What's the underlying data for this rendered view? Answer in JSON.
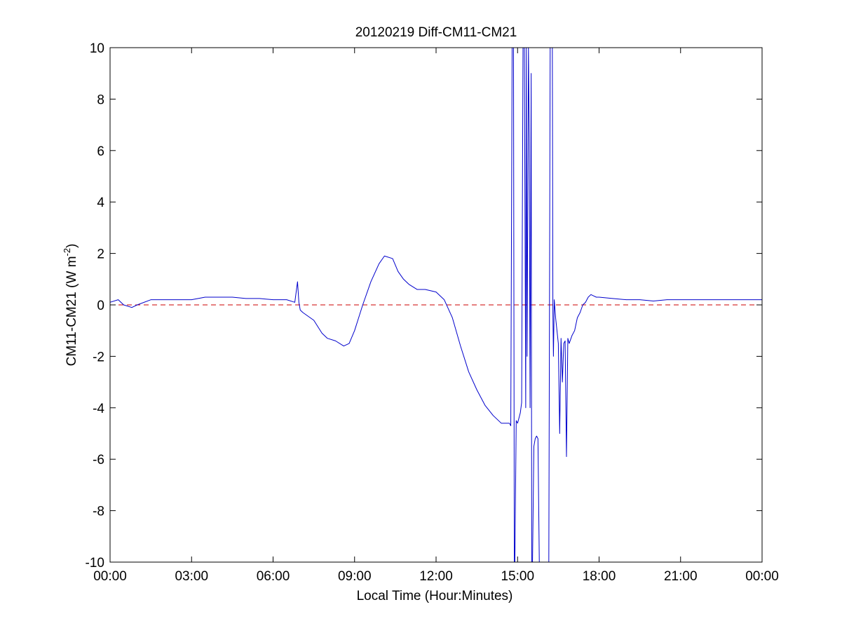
{
  "chart_data": {
    "type": "line",
    "title": "20120219 Diff-CM11-CM21",
    "xlabel": "Local Time (Hour:Minutes)",
    "ylabel": "CM11-CM21 (W m-2)",
    "ylabel_parts": {
      "main": "CM11-CM21 (W m",
      "sup": "-2",
      "close": ")"
    },
    "xlim": [
      0,
      24
    ],
    "ylim": [
      -10,
      10
    ],
    "x_ticks": [
      {
        "value": 0,
        "label": "00:00"
      },
      {
        "value": 3,
        "label": "03:00"
      },
      {
        "value": 6,
        "label": "06:00"
      },
      {
        "value": 9,
        "label": "09:00"
      },
      {
        "value": 12,
        "label": "12:00"
      },
      {
        "value": 15,
        "label": "15:00"
      },
      {
        "value": 18,
        "label": "18:00"
      },
      {
        "value": 21,
        "label": "21:00"
      },
      {
        "value": 24,
        "label": "00:00"
      }
    ],
    "y_ticks": [
      {
        "value": 10,
        "label": "10"
      },
      {
        "value": 8,
        "label": "8"
      },
      {
        "value": 6,
        "label": "6"
      },
      {
        "value": 4,
        "label": "4"
      },
      {
        "value": 2,
        "label": "2"
      },
      {
        "value": 0,
        "label": "0"
      },
      {
        "value": -2,
        "label": "-2"
      },
      {
        "value": -4,
        "label": "-4"
      },
      {
        "value": -6,
        "label": "-6"
      },
      {
        "value": -8,
        "label": "-8"
      },
      {
        "value": -10,
        "label": "-10"
      }
    ],
    "grid": false,
    "reference_line": {
      "y": 0,
      "color": "#cc0000",
      "style": "dashed"
    },
    "series": [
      {
        "color": "#0000cc",
        "x": [
          0,
          0.3,
          0.5,
          0.8,
          1.0,
          1.5,
          2.0,
          2.5,
          3.0,
          3.5,
          4.0,
          4.5,
          5.0,
          5.5,
          6.0,
          6.5,
          6.8,
          6.9,
          6.95,
          7.0,
          7.1,
          7.5,
          7.8,
          8.0,
          8.3,
          8.6,
          8.8,
          9.0,
          9.3,
          9.6,
          9.9,
          10.1,
          10.4,
          10.6,
          10.8,
          11.0,
          11.3,
          11.6,
          12.0,
          12.3,
          12.6,
          12.9,
          13.2,
          13.5,
          13.8,
          14.1,
          14.4,
          14.7,
          14.75,
          14.8,
          14.82,
          14.85,
          14.88,
          14.9,
          14.95,
          15.0,
          15.05,
          15.1,
          15.15,
          15.2,
          15.25,
          15.3,
          15.32,
          15.35,
          15.4,
          15.43,
          15.46,
          15.5,
          15.52,
          15.55,
          15.6,
          15.65,
          15.7,
          15.75,
          15.8,
          15.85,
          15.9,
          15.95,
          16.0,
          16.05,
          16.1,
          16.15,
          16.2,
          16.25,
          16.28,
          16.3,
          16.32,
          16.35,
          16.4,
          16.5,
          16.55,
          16.6,
          16.65,
          16.7,
          16.75,
          16.8,
          16.85,
          16.9,
          17.0,
          17.1,
          17.2,
          17.3,
          17.4,
          17.5,
          17.6,
          17.7,
          17.8,
          17.9,
          18.0,
          18.5,
          19.0,
          19.5,
          20.0,
          20.5,
          21.0,
          21.5,
          22.0,
          22.5,
          23.0,
          23.5,
          24.0
        ],
        "y": [
          0.1,
          0.2,
          0.0,
          -0.1,
          0.0,
          0.2,
          0.2,
          0.2,
          0.2,
          0.3,
          0.3,
          0.3,
          0.25,
          0.25,
          0.2,
          0.2,
          0.1,
          0.9,
          0.1,
          -0.2,
          -0.3,
          -0.6,
          -1.1,
          -1.3,
          -1.4,
          -1.6,
          -1.5,
          -1.0,
          0.0,
          0.9,
          1.6,
          1.9,
          1.8,
          1.3,
          1.0,
          0.8,
          0.6,
          0.6,
          0.5,
          0.2,
          -0.5,
          -1.6,
          -2.6,
          -3.3,
          -3.9,
          -4.3,
          -4.6,
          -4.6,
          -4.7,
          10.0,
          10.0,
          10.0,
          -10.0,
          -10.0,
          -4.5,
          -4.6,
          -4.4,
          -4.2,
          -3.8,
          10.0,
          10.0,
          -4.0,
          10.0,
          -2.0,
          10.0,
          6.5,
          -4.0,
          9.0,
          -10.0,
          -10.0,
          -5.5,
          -5.2,
          -5.1,
          -5.2,
          -10.0,
          -10.0,
          -10.0,
          -10.0,
          -10.0,
          -10.0,
          -10.0,
          -10.0,
          10.0,
          10.0,
          10.0,
          -0.3,
          -2.0,
          0.2,
          -0.5,
          -1.5,
          -5.0,
          -1.3,
          -3.0,
          -1.5,
          -1.4,
          -5.9,
          -1.3,
          -1.5,
          -1.2,
          -1.0,
          -0.5,
          -0.3,
          0.0,
          0.1,
          0.3,
          0.4,
          0.35,
          0.3,
          0.3,
          0.25,
          0.2,
          0.2,
          0.15,
          0.2,
          0.2,
          0.2,
          0.2,
          0.2,
          0.2,
          0.2,
          0.2
        ]
      }
    ]
  }
}
